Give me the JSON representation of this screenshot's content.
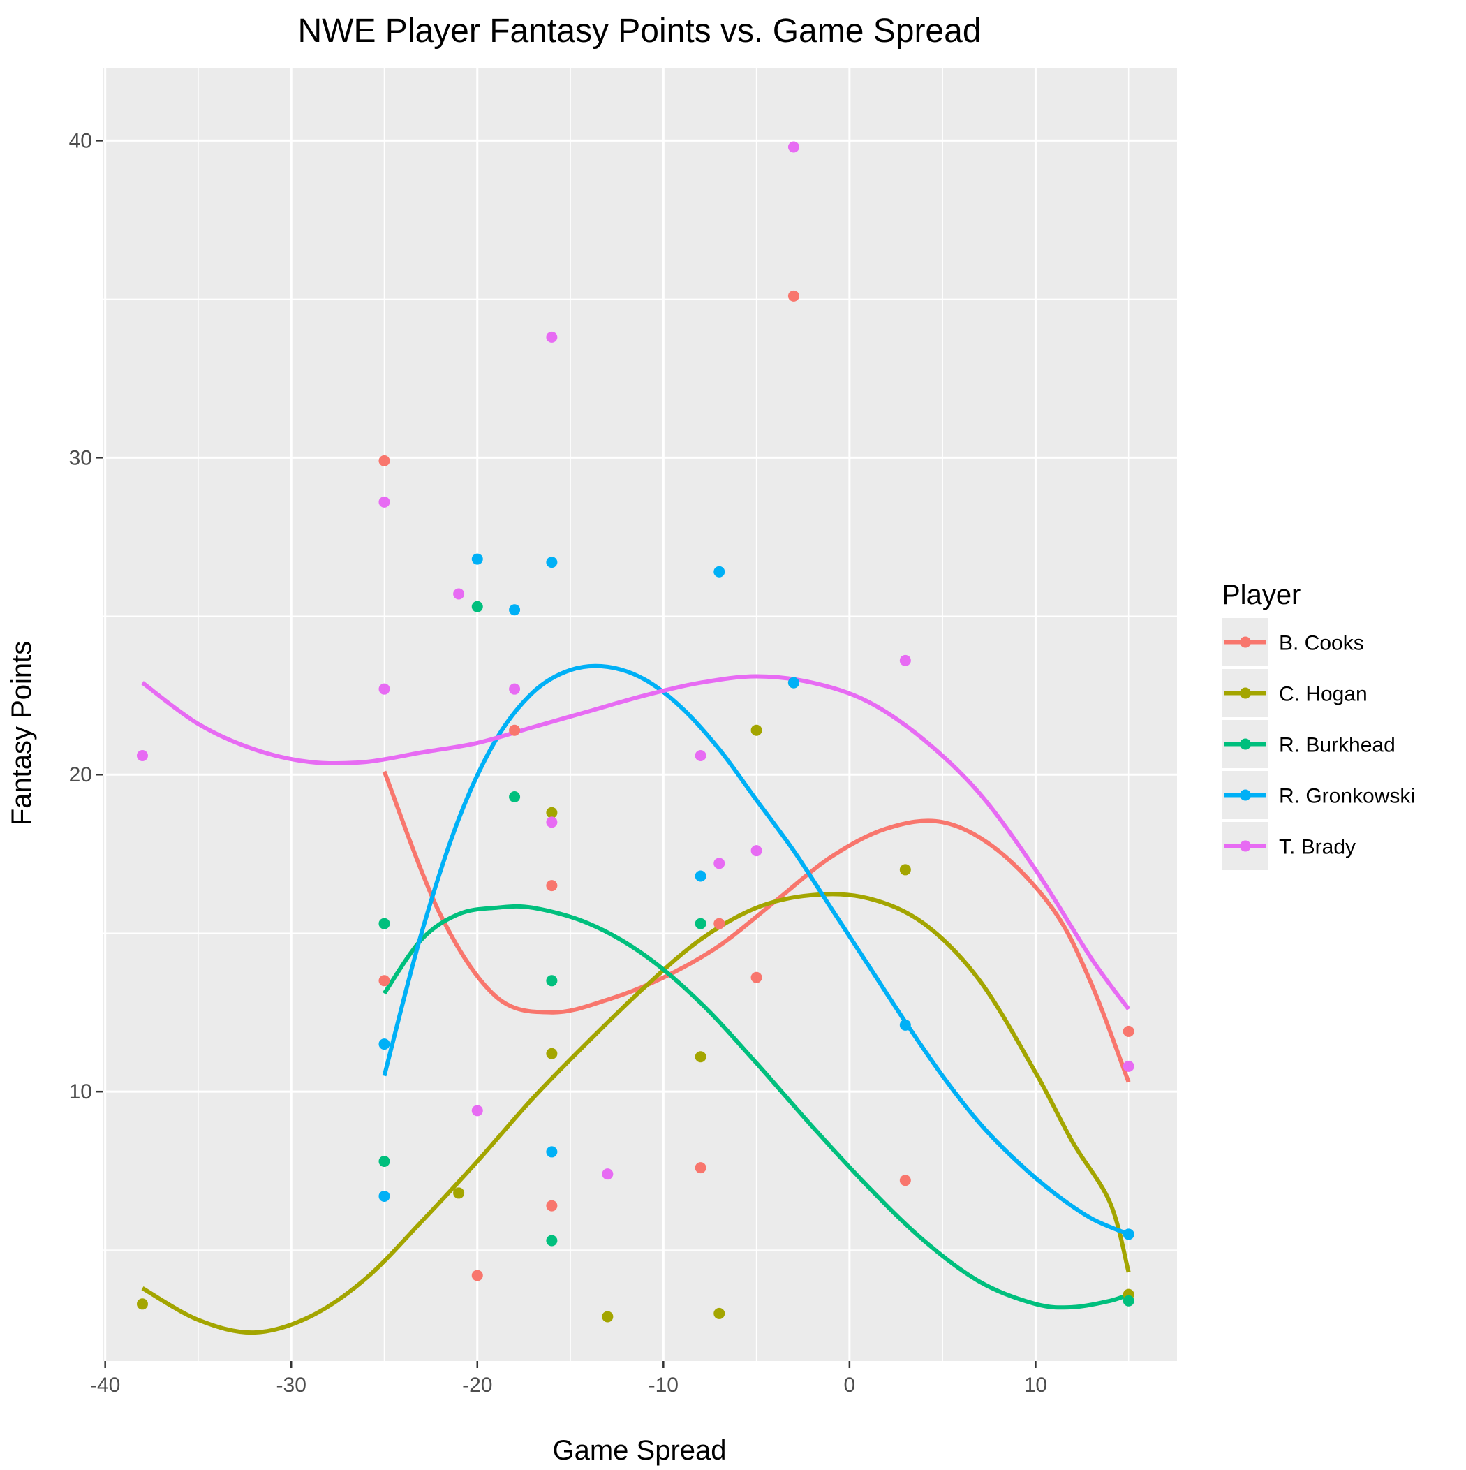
{
  "chart_data": {
    "type": "scatter",
    "title": "NWE Player Fantasy Points vs. Game Spread",
    "xlabel": "Game Spread",
    "ylabel": "Fantasy Points",
    "xlim": [
      -40.1,
      17.6
    ],
    "ylim": [
      1.5,
      42.3
    ],
    "x_ticks": [
      -40,
      -30,
      -20,
      -10,
      0,
      10
    ],
    "y_ticks": [
      10,
      20,
      30,
      40
    ],
    "x_tick_labels": [
      "-40",
      "-30",
      "-20",
      "-10",
      "0",
      "10"
    ],
    "y_tick_labels": [
      "10",
      "20",
      "30",
      "40"
    ],
    "grid": true,
    "legend_title": "Player",
    "legend_position": "right",
    "series": [
      {
        "name": "B. Cooks",
        "color": "#F8766D",
        "points": [
          [
            -25,
            29.9
          ],
          [
            -25,
            13.5
          ],
          [
            -20,
            4.2
          ],
          [
            -18,
            21.4
          ],
          [
            -16,
            16.5
          ],
          [
            -16,
            6.4
          ],
          [
            -8,
            7.6
          ],
          [
            -7,
            15.3
          ],
          [
            -5,
            13.6
          ],
          [
            -3,
            35.1
          ],
          [
            3,
            7.2
          ],
          [
            15,
            11.9
          ]
        ],
        "trend": [
          [
            -25,
            20.1
          ],
          [
            -22,
            15.6
          ],
          [
            -19,
            13.0
          ],
          [
            -16,
            12.5
          ],
          [
            -13,
            12.9
          ],
          [
            -10,
            13.6
          ],
          [
            -7,
            14.6
          ],
          [
            -4,
            16.0
          ],
          [
            -1,
            17.4
          ],
          [
            2,
            18.3
          ],
          [
            5,
            18.5
          ],
          [
            8,
            17.6
          ],
          [
            11,
            15.7
          ],
          [
            13,
            13.4
          ],
          [
            15,
            10.3
          ]
        ]
      },
      {
        "name": "C. Hogan",
        "color": "#A3A500",
        "points": [
          [
            -38,
            3.3
          ],
          [
            -21,
            6.8
          ],
          [
            -16,
            18.8
          ],
          [
            -16,
            11.2
          ],
          [
            -13,
            2.9
          ],
          [
            -8,
            11.1
          ],
          [
            -7,
            3.0
          ],
          [
            -5,
            21.4
          ],
          [
            -3,
            22.9
          ],
          [
            3,
            17.0
          ],
          [
            15,
            3.6
          ]
        ],
        "trend": [
          [
            -38,
            3.8
          ],
          [
            -35,
            2.8
          ],
          [
            -32,
            2.4
          ],
          [
            -29,
            2.9
          ],
          [
            -26,
            4.1
          ],
          [
            -23,
            5.9
          ],
          [
            -20,
            7.8
          ],
          [
            -17,
            9.8
          ],
          [
            -14,
            11.6
          ],
          [
            -11,
            13.3
          ],
          [
            -8,
            14.8
          ],
          [
            -5,
            15.8
          ],
          [
            -2,
            16.2
          ],
          [
            1,
            16.1
          ],
          [
            4,
            15.3
          ],
          [
            7,
            13.5
          ],
          [
            10,
            10.6
          ],
          [
            12,
            8.4
          ],
          [
            14,
            6.5
          ],
          [
            15,
            4.3
          ]
        ]
      },
      {
        "name": "R. Burkhead",
        "color": "#00BF7D",
        "points": [
          [
            -25,
            15.3
          ],
          [
            -25,
            7.8
          ],
          [
            -20,
            25.3
          ],
          [
            -18,
            19.3
          ],
          [
            -16,
            13.5
          ],
          [
            -16,
            5.3
          ],
          [
            -8,
            15.3
          ],
          [
            15,
            3.4
          ]
        ],
        "trend": [
          [
            -25,
            13.1
          ],
          [
            -23,
            14.8
          ],
          [
            -21,
            15.6
          ],
          [
            -19,
            15.8
          ],
          [
            -17,
            15.8
          ],
          [
            -14,
            15.3
          ],
          [
            -11,
            14.3
          ],
          [
            -8,
            12.8
          ],
          [
            -5,
            10.9
          ],
          [
            -2,
            8.9
          ],
          [
            1,
            7.0
          ],
          [
            4,
            5.3
          ],
          [
            7,
            4.0
          ],
          [
            10,
            3.3
          ],
          [
            12,
            3.2
          ],
          [
            14,
            3.4
          ],
          [
            15,
            3.6
          ]
        ]
      },
      {
        "name": "R. Gronkowski",
        "color": "#00B0F6",
        "points": [
          [
            -25,
            11.5
          ],
          [
            -25,
            6.7
          ],
          [
            -20,
            26.8
          ],
          [
            -18,
            25.2
          ],
          [
            -16,
            26.7
          ],
          [
            -16,
            8.1
          ],
          [
            -8,
            16.8
          ],
          [
            -7,
            26.4
          ],
          [
            -3,
            22.9
          ],
          [
            3,
            12.1
          ],
          [
            15,
            5.5
          ]
        ],
        "trend": [
          [
            -25,
            10.5
          ],
          [
            -23,
            15.0
          ],
          [
            -21,
            18.6
          ],
          [
            -19,
            21.1
          ],
          [
            -17,
            22.6
          ],
          [
            -15,
            23.3
          ],
          [
            -13,
            23.4
          ],
          [
            -11,
            23.0
          ],
          [
            -9,
            22.1
          ],
          [
            -7,
            20.8
          ],
          [
            -5,
            19.2
          ],
          [
            -3,
            17.6
          ],
          [
            -1,
            15.8
          ],
          [
            1,
            14.0
          ],
          [
            3,
            12.2
          ],
          [
            5,
            10.5
          ],
          [
            7,
            9.0
          ],
          [
            9,
            7.8
          ],
          [
            11,
            6.8
          ],
          [
            13,
            6.0
          ],
          [
            15,
            5.5
          ]
        ]
      },
      {
        "name": "T. Brady",
        "color": "#E76BF3",
        "points": [
          [
            -38,
            20.6
          ],
          [
            -25,
            28.6
          ],
          [
            -25,
            22.7
          ],
          [
            -21,
            25.7
          ],
          [
            -20,
            9.4
          ],
          [
            -18,
            22.7
          ],
          [
            -16,
            33.8
          ],
          [
            -16,
            18.5
          ],
          [
            -13,
            7.4
          ],
          [
            -8,
            20.6
          ],
          [
            -7,
            17.2
          ],
          [
            -5,
            17.6
          ],
          [
            -3,
            39.8
          ],
          [
            3,
            23.6
          ],
          [
            15,
            10.8
          ]
        ],
        "trend": [
          [
            -38,
            22.9
          ],
          [
            -35,
            21.6
          ],
          [
            -32,
            20.8
          ],
          [
            -29,
            20.4
          ],
          [
            -26,
            20.4
          ],
          [
            -23,
            20.7
          ],
          [
            -20,
            21.0
          ],
          [
            -17,
            21.5
          ],
          [
            -14,
            22.0
          ],
          [
            -11,
            22.5
          ],
          [
            -8,
            22.9
          ],
          [
            -5,
            23.1
          ],
          [
            -2,
            22.9
          ],
          [
            1,
            22.3
          ],
          [
            4,
            21.1
          ],
          [
            7,
            19.4
          ],
          [
            10,
            17.0
          ],
          [
            13,
            14.2
          ],
          [
            15,
            12.6
          ]
        ]
      }
    ]
  }
}
